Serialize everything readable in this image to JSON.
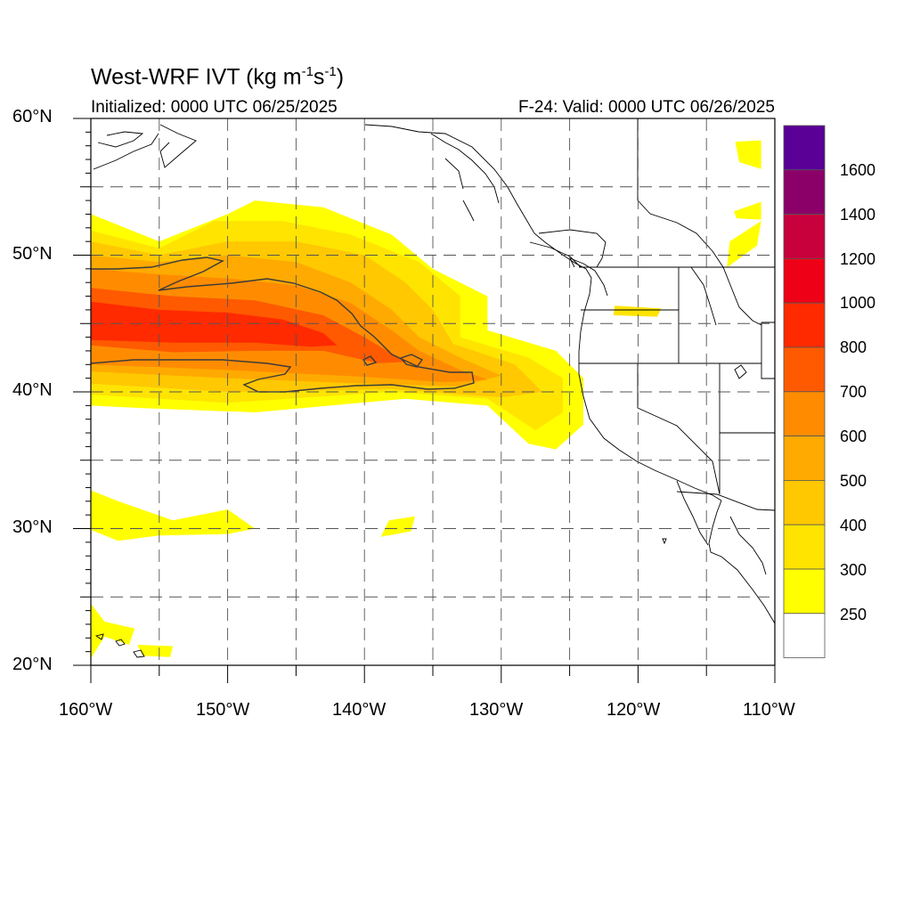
{
  "map": {
    "title": {
      "main": "West-WRF IVT (kg m",
      "sup1": "-1",
      "mid": "s",
      "sup2": "-1",
      "end": ")"
    },
    "initialized": "Initialized: 0000 UTC 06/25/2025",
    "valid": "F-24: Valid: 0000 UTC 06/26/2025",
    "lat_labels": [
      "60°N",
      "50°N",
      "40°N",
      "30°N",
      "20°N"
    ],
    "lon_labels": [
      "160°W",
      "150°W",
      "140°W",
      "130°W",
      "120°W",
      "110°W"
    ],
    "extent": {
      "lon": [
        -160,
        -110
      ],
      "lat": [
        20,
        60
      ]
    }
  },
  "colorbar": {
    "labels": [
      "1600",
      "1400",
      "1200",
      "1000",
      "800",
      "700",
      "600",
      "500",
      "400",
      "300",
      "250"
    ],
    "colors": [
      "#5a0096",
      "#8b0068",
      "#c8003c",
      "#ee0016",
      "#ff2a00",
      "#ff5a00",
      "#ff8c00",
      "#ffaa00",
      "#ffc800",
      "#ffe400",
      "#ffff00",
      "#ffffff"
    ]
  },
  "chart_data": {
    "type": "heatmap",
    "variable": "IVT",
    "units": "kg m-1 s-1",
    "levels": [
      250,
      300,
      400,
      500,
      600,
      700,
      800,
      1000,
      1200,
      1400,
      1600
    ],
    "x_range": [
      -160,
      -110
    ],
    "y_range": [
      20,
      60
    ],
    "features": [
      {
        "level": 250,
        "polygon": [
          [
            -160,
            53
          ],
          [
            -155,
            51
          ],
          [
            -150,
            53
          ],
          [
            -148,
            54
          ],
          [
            -143,
            53.5
          ],
          [
            -138,
            51.5
          ],
          [
            -135,
            49
          ],
          [
            -131,
            47
          ],
          [
            -131,
            44.5
          ],
          [
            -126,
            43
          ],
          [
            -124,
            41
          ],
          [
            -124,
            37.6
          ],
          [
            -126,
            35.8
          ],
          [
            -128,
            36.2
          ],
          [
            -131,
            39
          ],
          [
            -137,
            39.5
          ],
          [
            -148,
            38.5
          ],
          [
            -156,
            38.8
          ],
          [
            -160,
            39
          ]
        ]
      },
      {
        "level": 300,
        "polygon": [
          [
            -160,
            51.8
          ],
          [
            -155,
            50.5
          ],
          [
            -151,
            52.5
          ],
          [
            -146,
            52.5
          ],
          [
            -141,
            51.5
          ],
          [
            -136,
            49.5
          ],
          [
            -133,
            47
          ],
          [
            -133,
            44
          ],
          [
            -128,
            42.5
          ],
          [
            -125.5,
            41
          ],
          [
            -125.5,
            38.5
          ],
          [
            -127.5,
            37.2
          ],
          [
            -131,
            39.5
          ],
          [
            -138,
            40
          ],
          [
            -150,
            39.2
          ],
          [
            -160,
            39.8
          ]
        ]
      },
      {
        "level": 400,
        "polygon": [
          [
            -160,
            51
          ],
          [
            -155,
            50
          ],
          [
            -150,
            51
          ],
          [
            -145,
            51
          ],
          [
            -140,
            50
          ],
          [
            -137,
            48
          ],
          [
            -135,
            46
          ],
          [
            -133.5,
            43.5
          ],
          [
            -129,
            42
          ],
          [
            -127,
            40
          ],
          [
            -130,
            39.6
          ],
          [
            -138,
            40.2
          ],
          [
            -150,
            40
          ],
          [
            -160,
            40.6
          ]
        ]
      },
      {
        "level": 500,
        "polygon": [
          [
            -160,
            50
          ],
          [
            -155,
            49.5
          ],
          [
            -150,
            50
          ],
          [
            -145,
            49.5
          ],
          [
            -141,
            48
          ],
          [
            -138,
            46
          ],
          [
            -136,
            44
          ],
          [
            -133,
            42.5
          ],
          [
            -130,
            41.2
          ],
          [
            -133,
            40.4
          ],
          [
            -140,
            40.6
          ],
          [
            -150,
            41
          ],
          [
            -160,
            41.5
          ]
        ]
      },
      {
        "level": 600,
        "polygon": [
          [
            -160,
            49
          ],
          [
            -155,
            48.6
          ],
          [
            -150,
            48.3
          ],
          [
            -145,
            47.8
          ],
          [
            -141,
            46.5
          ],
          [
            -138,
            44.5
          ],
          [
            -136,
            43
          ],
          [
            -133,
            41.6
          ],
          [
            -131,
            40.9
          ],
          [
            -134,
            40.7
          ],
          [
            -140,
            41.1
          ],
          [
            -150,
            41.6
          ],
          [
            -160,
            42
          ]
        ]
      },
      {
        "level": 700,
        "polygon": [
          [
            -160,
            47.6
          ],
          [
            -154,
            47
          ],
          [
            -148,
            46.7
          ],
          [
            -143,
            45.6
          ],
          [
            -140,
            44
          ],
          [
            -138,
            42.8
          ],
          [
            -137,
            42.2
          ],
          [
            -139,
            42.1
          ],
          [
            -143,
            43
          ],
          [
            -148,
            43
          ],
          [
            -154,
            42.9
          ],
          [
            -160,
            43.4
          ]
        ]
      },
      {
        "level": 800,
        "polygon": [
          [
            -160,
            46.6
          ],
          [
            -155,
            46
          ],
          [
            -150,
            45.8
          ],
          [
            -146,
            45.3
          ],
          [
            -143,
            44.3
          ],
          [
            -142,
            43.4
          ],
          [
            -144,
            43.3
          ],
          [
            -148,
            43.6
          ],
          [
            -154,
            43.6
          ],
          [
            -160,
            43.8
          ]
        ]
      },
      {
        "level": 250,
        "polygon": [
          [
            -138.2,
            30.6
          ],
          [
            -136.3,
            30.9
          ],
          [
            -136.6,
            29.8
          ],
          [
            -138.8,
            29.4
          ]
        ]
      },
      {
        "level": 300,
        "polygon": [
          [
            -121.7,
            46.3
          ],
          [
            -118.3,
            46.1
          ],
          [
            -118.6,
            45.5
          ],
          [
            -121.8,
            45.6
          ]
        ]
      },
      {
        "level": 250,
        "polygon": [
          [
            -112.9,
            58.3
          ],
          [
            -111,
            58.4
          ],
          [
            -111,
            56.3
          ],
          [
            -112.6,
            56.8
          ]
        ]
      },
      {
        "level": 250,
        "polygon": [
          [
            -113.3,
            51
          ],
          [
            -111,
            52.5
          ],
          [
            -111.3,
            50.7
          ],
          [
            -113.5,
            49.1
          ]
        ]
      },
      {
        "level": 250,
        "polygon": [
          [
            -113,
            53.2
          ],
          [
            -111,
            53.9
          ],
          [
            -111,
            52.6
          ],
          [
            -112.8,
            52.7
          ]
        ]
      },
      {
        "level": 250,
        "polygon": [
          [
            -160,
            32.8
          ],
          [
            -158,
            32
          ],
          [
            -154,
            30.6
          ],
          [
            -150,
            31.4
          ],
          [
            -148,
            30
          ],
          [
            -150,
            29.6
          ],
          [
            -155,
            29.5
          ],
          [
            -158,
            29.1
          ],
          [
            -160,
            29.9
          ]
        ]
      },
      {
        "level": 250,
        "polygon": [
          [
            -160,
            24.5
          ],
          [
            -159,
            23.2
          ],
          [
            -156.8,
            22.7
          ],
          [
            -157.2,
            21.5
          ],
          [
            -159,
            22.1
          ],
          [
            -160,
            20.5
          ]
        ]
      },
      {
        "level": 250,
        "polygon": [
          [
            -156.6,
            21.5
          ],
          [
            -154,
            21.4
          ],
          [
            -154.2,
            20.6
          ],
          [
            -156.2,
            20.7
          ]
        ]
      }
    ]
  }
}
